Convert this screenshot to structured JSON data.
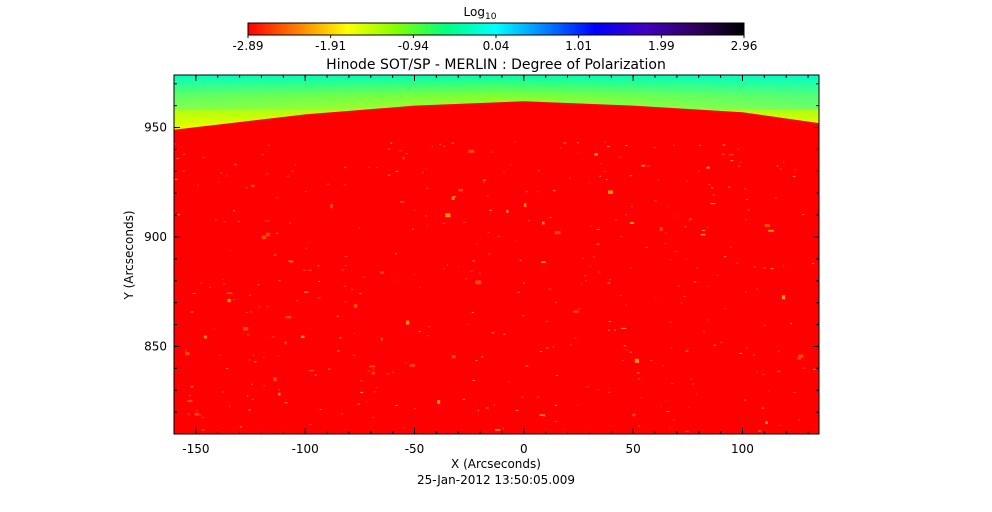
{
  "chart_data": {
    "type": "heatmap",
    "title": "Hinode SOT/SP - MERLIN : Degree of Polarization",
    "xlabel": "X (Arcseconds)",
    "ylabel": "Y (Arcseconds)",
    "timestamp": "25-Jan-2012 13:50:05.009",
    "xlim": [
      -160,
      135
    ],
    "ylim": [
      810,
      974
    ],
    "x_ticks": [
      -150,
      -100,
      -50,
      0,
      50,
      100
    ],
    "y_ticks": [
      850,
      900,
      950
    ],
    "colorbar": {
      "label_base": "Log",
      "label_sub": "10",
      "range": [
        -2.89,
        2.96
      ],
      "ticks": [
        "-2.89",
        "-1.91",
        "-0.94",
        "0.04",
        "1.01",
        "1.99",
        "2.96"
      ],
      "colormap": [
        "#ff0000",
        "#ff8000",
        "#ffff00",
        "#80ff00",
        "#00ff80",
        "#00ffff",
        "#0080ff",
        "#0000ff",
        "#4000c0",
        "#300060",
        "#000000"
      ]
    },
    "limb_edge_y": [
      {
        "x": -160,
        "y": 949
      },
      {
        "x": -100,
        "y": 956
      },
      {
        "x": -50,
        "y": 960
      },
      {
        "x": 0,
        "y": 962
      },
      {
        "x": 50,
        "y": 960
      },
      {
        "x": 100,
        "y": 957
      },
      {
        "x": 135,
        "y": 952
      }
    ]
  }
}
